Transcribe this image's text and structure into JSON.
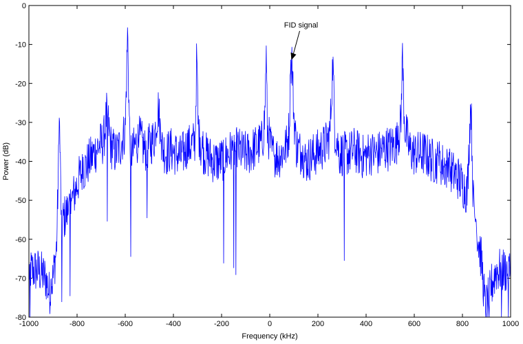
{
  "chart_data": {
    "type": "line",
    "title": "",
    "xlabel": "Frequency (kHz)",
    "ylabel": "Power (dB)",
    "xlim": [
      -1000,
      1000
    ],
    "ylim": [
      -80,
      0
    ],
    "xticks": [
      -1000,
      -800,
      -600,
      -400,
      -200,
      0,
      200,
      400,
      600,
      800,
      1000
    ],
    "yticks": [
      0,
      -10,
      -20,
      -30,
      -40,
      -50,
      -60,
      -70,
      -80
    ],
    "grid": false,
    "line_color": "#0000ff",
    "annotation": {
      "text": "FID signal",
      "target_x": 90,
      "target_y": -14
    },
    "series": [
      {
        "values_description_free": true,
        "x": [
          -1000,
          -960,
          -930,
          -915,
          -900,
          -885,
          -873,
          -865,
          -850,
          -830,
          -810,
          -790,
          -770,
          -750,
          -730,
          -710,
          -690,
          -676,
          -660,
          -640,
          -620,
          -600,
          -590,
          -585,
          -580,
          -570,
          -560,
          -540,
          -520,
          -500,
          -480,
          -462,
          -450,
          -430,
          -410,
          -390,
          -370,
          -350,
          -330,
          -310,
          -303,
          -298,
          -290,
          -270,
          -250,
          -230,
          -210,
          -190,
          -170,
          -150,
          -130,
          -110,
          -90,
          -70,
          -50,
          -30,
          -20,
          -15,
          -10,
          10,
          30,
          50,
          70,
          80,
          88,
          92,
          100,
          110,
          130,
          150,
          170,
          190,
          210,
          230,
          250,
          262,
          270,
          290,
          310,
          330,
          350,
          370,
          390,
          410,
          430,
          450,
          470,
          490,
          510,
          530,
          545,
          550,
          560,
          580,
          600,
          620,
          640,
          660,
          680,
          700,
          720,
          740,
          760,
          780,
          800,
          820,
          835,
          845,
          860,
          880,
          895,
          905,
          920,
          940,
          960,
          1000
        ],
        "y": [
          -68,
          -68,
          -70,
          -74,
          -70,
          -62,
          -30,
          -56,
          -54,
          -52,
          -48,
          -44,
          -42,
          -40,
          -38,
          -36,
          -35,
          -27,
          -36,
          -38,
          -36,
          -32,
          -6,
          -24,
          -36,
          -38,
          -36,
          -34,
          -37,
          -36,
          -34,
          -26,
          -36,
          -38,
          -37,
          -38,
          -39,
          -37,
          -36,
          -35,
          -12,
          -30,
          -36,
          -38,
          -39,
          -40,
          -40,
          -39,
          -38,
          -37,
          -37,
          -38,
          -38,
          -37,
          -36,
          -35,
          -28,
          -11,
          -32,
          -38,
          -39,
          -38,
          -36,
          -32,
          -15,
          -14,
          -28,
          -36,
          -38,
          -40,
          -39,
          -38,
          -37,
          -36,
          -33,
          -14,
          -32,
          -38,
          -38,
          -38,
          -37,
          -38,
          -39,
          -38,
          -38,
          -38,
          -37,
          -37,
          -36,
          -35,
          -30,
          -12,
          -31,
          -37,
          -38,
          -38,
          -38,
          -39,
          -40,
          -40,
          -41,
          -42,
          -43,
          -44,
          -46,
          -48,
          -24,
          -50,
          -58,
          -66,
          -78,
          -76,
          -72,
          -68,
          -68,
          -68
        ]
      }
    ]
  }
}
